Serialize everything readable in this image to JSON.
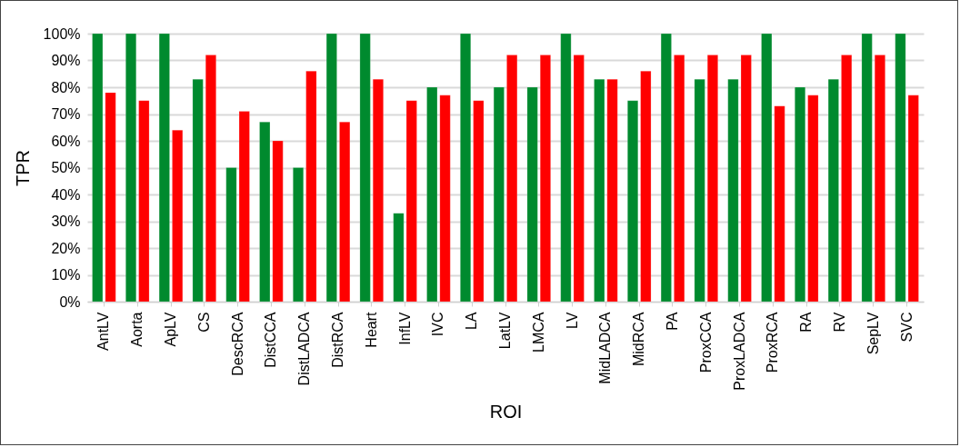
{
  "chart_data": {
    "type": "bar",
    "xlabel": "ROI",
    "ylabel": "TPR",
    "categories": [
      "AntLV",
      "Aorta",
      "ApLV",
      "CS",
      "DescRCA",
      "DistCCA",
      "DistLADCA",
      "DistRCA",
      "Heart",
      "InfLV",
      "IVC",
      "LA",
      "LatLV",
      "LMCA",
      "LV",
      "MidLADCA",
      "MidRCA",
      "PA",
      "ProxCCA",
      "ProxLADCA",
      "ProxRCA",
      "RA",
      "RV",
      "SepLV",
      "SVC"
    ],
    "series": [
      {
        "color": "#008a2e",
        "values": [
          100,
          100,
          100,
          83,
          50,
          67,
          50,
          100,
          100,
          33,
          80,
          100,
          80,
          80,
          100,
          83,
          75,
          100,
          83,
          83,
          100,
          80,
          83,
          100,
          100
        ]
      },
      {
        "color": "#ff0000",
        "values": [
          78,
          75,
          64,
          92,
          71,
          60,
          86,
          67,
          83,
          75,
          77,
          75,
          92,
          92,
          92,
          83,
          86,
          92,
          92,
          92,
          73,
          77,
          92,
          92,
          77
        ]
      }
    ],
    "ylim": [
      0,
      100
    ],
    "yticks": [
      {
        "value": 0,
        "label": "0%"
      },
      {
        "value": 10,
        "label": "10%"
      },
      {
        "value": 20,
        "label": "20%"
      },
      {
        "value": 30,
        "label": "30%"
      },
      {
        "value": 40,
        "label": "40%"
      },
      {
        "value": 50,
        "label": "50%"
      },
      {
        "value": 60,
        "label": "60%"
      },
      {
        "value": 70,
        "label": "70%"
      },
      {
        "value": 80,
        "label": "80%"
      },
      {
        "value": 90,
        "label": "90%"
      },
      {
        "value": 100,
        "label": "100%"
      }
    ],
    "grid": "y",
    "legend": false
  }
}
